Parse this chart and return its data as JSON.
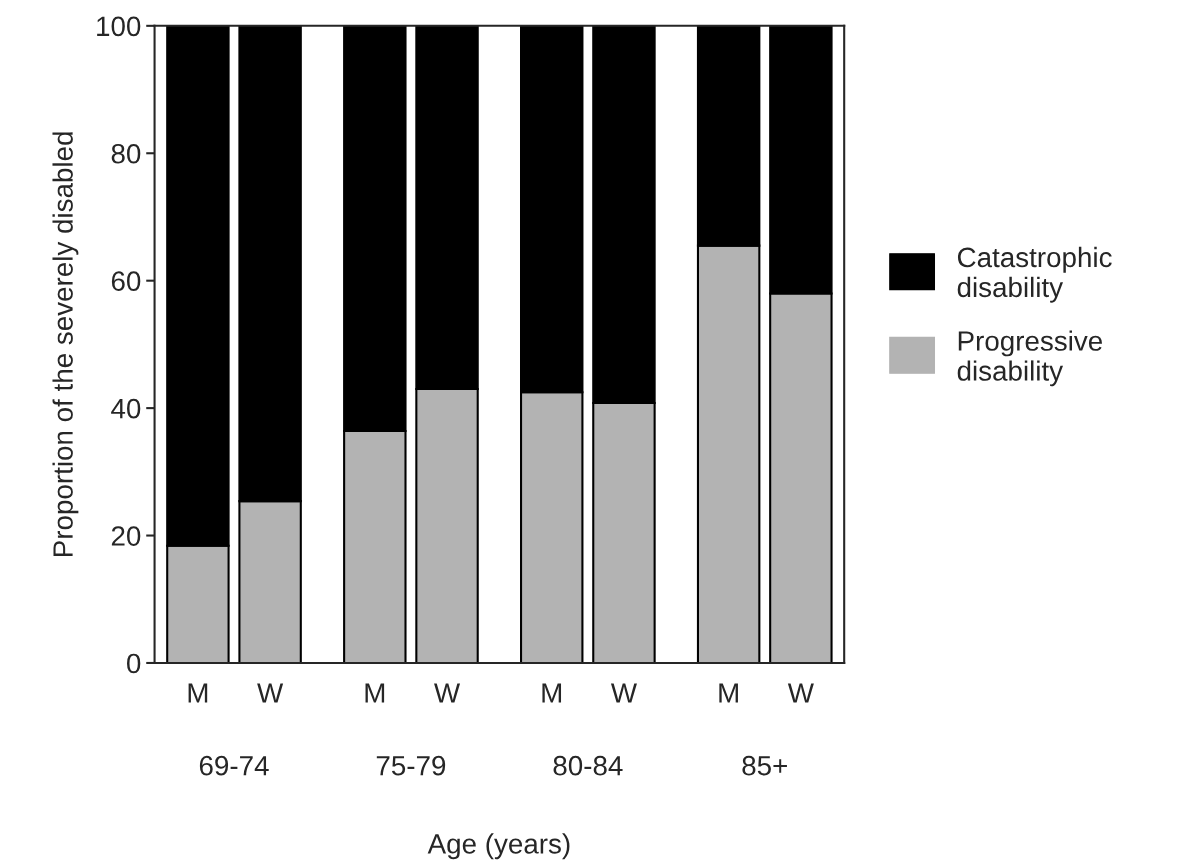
{
  "chart_data": {
    "type": "bar",
    "stacked": true,
    "xlabel": "Age (years)",
    "ylabel": "Proportion of the severely disabled",
    "categories": [
      "M",
      "W",
      "M",
      "W",
      "M",
      "W",
      "M",
      "W"
    ],
    "series": [
      {
        "name": "Progressive disability",
        "color": "#b3b3b3",
        "values": [
          18.4,
          25.4,
          36.4,
          43.0,
          42.5,
          40.8,
          65.5,
          58.0
        ]
      },
      {
        "name": "Catastrophic disability",
        "color": "#000000",
        "values": [
          81.6,
          74.6,
          63.6,
          57.0,
          57.5,
          59.2,
          34.5,
          42.0
        ]
      }
    ],
    "annotations": [
      "69-74",
      "75-79",
      "80-84",
      "85+"
    ],
    "ylim": [
      0,
      100
    ],
    "yticks": [
      0,
      20,
      40,
      60,
      80,
      100
    ],
    "grid": false,
    "legend": "right"
  }
}
